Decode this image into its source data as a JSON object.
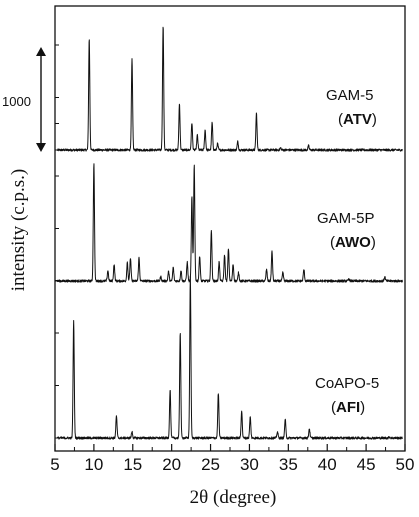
{
  "chart_data": {
    "type": "line",
    "xlabel": "2θ (degree)",
    "ylabel": "intensity (c.p.s.)",
    "xlim": [
      5,
      50
    ],
    "x_ticks": [
      5,
      10,
      15,
      20,
      25,
      30,
      35,
      40,
      45,
      50
    ],
    "scale_bar_label": "1000",
    "scale_bar_counts": 1000,
    "series": [
      {
        "name": "GAM-5",
        "framework": "ATV",
        "paren_open": "(",
        "paren_close": ")",
        "baseline": 40,
        "peaks": [
          {
            "x": 9.4,
            "y": 1100
          },
          {
            "x": 11.5,
            "y": 40
          },
          {
            "x": 14.9,
            "y": 900
          },
          {
            "x": 18.9,
            "y": 1230
          },
          {
            "x": 21.0,
            "y": 480
          },
          {
            "x": 22.6,
            "y": 300
          },
          {
            "x": 23.3,
            "y": 180
          },
          {
            "x": 24.3,
            "y": 230
          },
          {
            "x": 25.2,
            "y": 300
          },
          {
            "x": 25.9,
            "y": 100
          },
          {
            "x": 28.5,
            "y": 120
          },
          {
            "x": 30.9,
            "y": 390
          },
          {
            "x": 34.0,
            "y": 60
          },
          {
            "x": 37.6,
            "y": 80
          }
        ]
      },
      {
        "name": "GAM-5P",
        "framework": "AWO",
        "paren_open": "(",
        "paren_close": ")",
        "baseline": 40,
        "peaks": [
          {
            "x": 10.0,
            "y": 1160
          },
          {
            "x": 11.8,
            "y": 140
          },
          {
            "x": 12.6,
            "y": 200
          },
          {
            "x": 14.3,
            "y": 220
          },
          {
            "x": 14.7,
            "y": 260
          },
          {
            "x": 15.8,
            "y": 260
          },
          {
            "x": 18.6,
            "y": 80
          },
          {
            "x": 19.6,
            "y": 130
          },
          {
            "x": 20.2,
            "y": 170
          },
          {
            "x": 21.2,
            "y": 140
          },
          {
            "x": 22.0,
            "y": 220
          },
          {
            "x": 22.6,
            "y": 840
          },
          {
            "x": 22.9,
            "y": 1150
          },
          {
            "x": 23.6,
            "y": 280
          },
          {
            "x": 25.1,
            "y": 530
          },
          {
            "x": 26.1,
            "y": 220
          },
          {
            "x": 26.8,
            "y": 290
          },
          {
            "x": 27.3,
            "y": 350
          },
          {
            "x": 27.9,
            "y": 200
          },
          {
            "x": 28.6,
            "y": 120
          },
          {
            "x": 32.2,
            "y": 150
          },
          {
            "x": 32.9,
            "y": 320
          },
          {
            "x": 34.3,
            "y": 120
          },
          {
            "x": 37.0,
            "y": 150
          },
          {
            "x": 42.8,
            "y": 60
          },
          {
            "x": 47.4,
            "y": 80
          }
        ]
      },
      {
        "name": "CoAPO-5",
        "framework": "AFI",
        "paren_open": "(",
        "paren_close": ")",
        "baseline": 40,
        "peaks": [
          {
            "x": 7.4,
            "y": 1150
          },
          {
            "x": 12.9,
            "y": 250
          },
          {
            "x": 14.9,
            "y": 100
          },
          {
            "x": 19.8,
            "y": 500
          },
          {
            "x": 21.1,
            "y": 1050
          },
          {
            "x": 22.4,
            "y": 1570
          },
          {
            "x": 26.0,
            "y": 470
          },
          {
            "x": 29.0,
            "y": 300
          },
          {
            "x": 30.1,
            "y": 240
          },
          {
            "x": 33.6,
            "y": 100
          },
          {
            "x": 34.6,
            "y": 220
          },
          {
            "x": 37.7,
            "y": 130
          },
          {
            "x": 48.0,
            "y": 50
          }
        ]
      }
    ]
  }
}
